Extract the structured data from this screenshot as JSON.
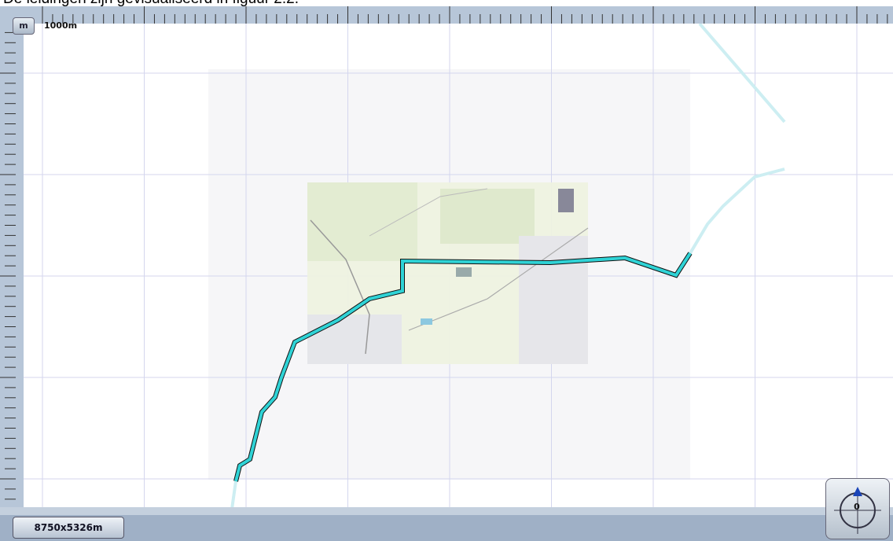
{
  "header": {
    "caption": "De leidingen zijn gevisualiseerd in figuur 2.2."
  },
  "toolbar": {
    "unit_button": "m",
    "scale_label": "1000m"
  },
  "status": {
    "dimensions": "8750x5326m"
  },
  "compass": {
    "heading": "0"
  }
}
